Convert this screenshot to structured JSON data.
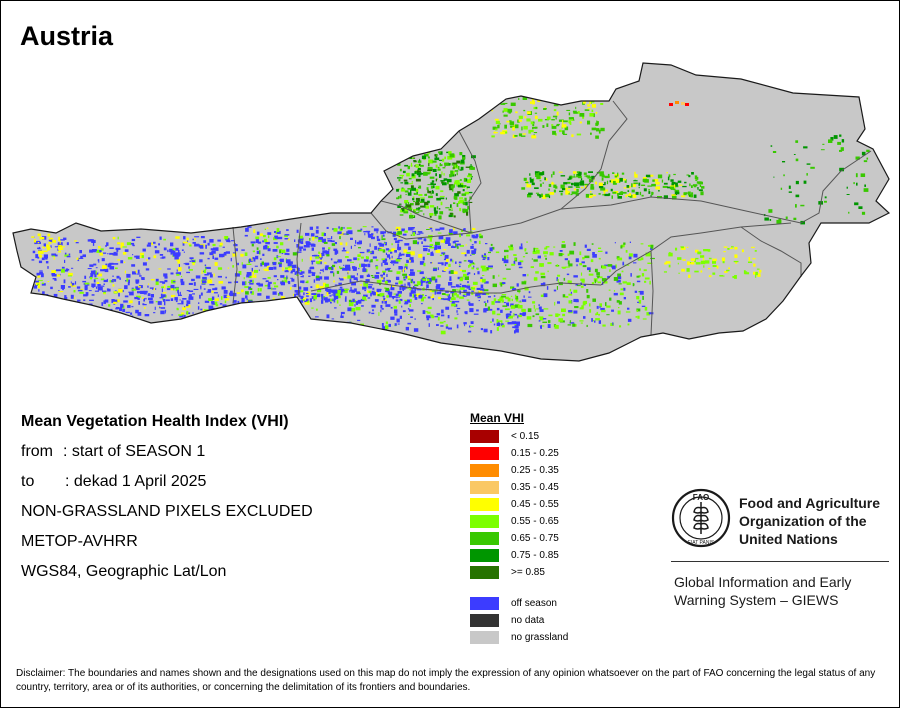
{
  "title": "Austria",
  "info": {
    "heading": "Mean Vegetation Health Index (VHI)",
    "from_label": "from",
    "from_value": ": start of SEASON 1",
    "to_label": "to",
    "to_value": ": dekad 1 April 2025",
    "note1": "NON-GRASSLAND PIXELS EXCLUDED",
    "note2": "METOP-AVHRR",
    "note3": "WGS84, Geographic Lat/Lon"
  },
  "legend": {
    "title": "Mean VHI",
    "classes": [
      {
        "label": "< 0.15",
        "color": "#a80000"
      },
      {
        "label": "0.15 - 0.25",
        "color": "#ff0000"
      },
      {
        "label": "0.25 - 0.35",
        "color": "#ff8c00"
      },
      {
        "label": "0.35 - 0.45",
        "color": "#fac864"
      },
      {
        "label": "0.45 - 0.55",
        "color": "#ffff00"
      },
      {
        "label": "0.55 - 0.65",
        "color": "#7cff00"
      },
      {
        "label": "0.65 - 0.75",
        "color": "#38c800"
      },
      {
        "label": "0.75 - 0.85",
        "color": "#009600"
      },
      {
        "label": ">= 0.85",
        "color": "#267300"
      }
    ],
    "special": [
      {
        "label": "off season",
        "color": "#3c3cff"
      },
      {
        "label": "no data",
        "color": "#333333"
      },
      {
        "label": "no grassland",
        "color": "#c8c8c8"
      }
    ]
  },
  "fao": {
    "name_line1": "Food and Agriculture",
    "name_line2": "Organization of the",
    "name_line3": "United Nations",
    "logo_text": "FAO",
    "logo_motto": "FIAT PANIS",
    "giews_line1": "Global Information and Early",
    "giews_line2": "Warning System – GIEWS"
  },
  "disclaimer": "Disclaimer: The boundaries and names shown and the designations used on this map do not imply the expression of any opinion whatsoever on the part of FAO concerning the legal status of any country, territory, area or of its authorities, or concerning the delimitation of its frontiers and boundaries."
}
